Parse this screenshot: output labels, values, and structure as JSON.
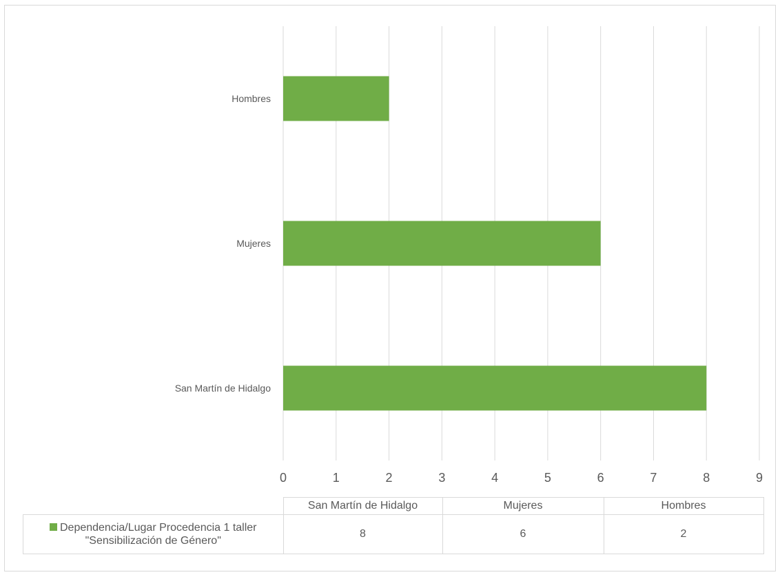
{
  "chart_data": {
    "type": "bar",
    "orientation": "horizontal",
    "categories": [
      "San Martín de Hidalgo",
      "Mujeres",
      "Hombres"
    ],
    "series": [
      {
        "name": "Dependencia/Lugar Procedencia 1 taller \"Sensibilización de Género\"",
        "values": [
          8,
          6,
          2
        ],
        "color": "#70ad47"
      }
    ],
    "xlim": [
      0,
      9
    ],
    "x_ticks": [
      "0",
      "1",
      "2",
      "3",
      "4",
      "5",
      "6",
      "7",
      "8",
      "9"
    ],
    "grid": "vertical",
    "legend": "data-table",
    "title": "",
    "xlabel": "",
    "ylabel": ""
  }
}
